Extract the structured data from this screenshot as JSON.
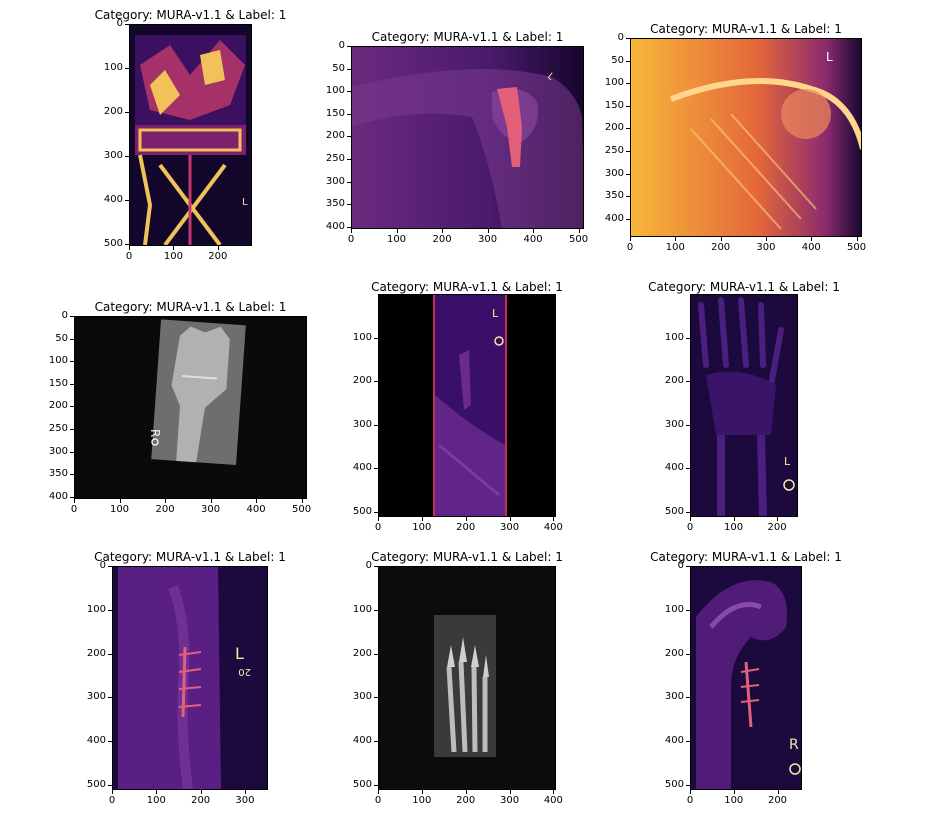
{
  "figure": {
    "panels": [
      {
        "title": "Category: MURA-v1.1 & Label: 1",
        "x_ticks": [
          "0",
          "100",
          "200"
        ],
        "y_ticks": [
          "0",
          "100",
          "200",
          "300",
          "400",
          "500"
        ],
        "x_range": [
          0,
          277
        ],
        "y_range": [
          0,
          505
        ],
        "colormap": "inferno",
        "content": "hardware-heavy limb film"
      },
      {
        "title": "Category: MURA-v1.1 & Label: 1",
        "x_ticks": [
          "0",
          "100",
          "200",
          "300",
          "400",
          "500"
        ],
        "y_ticks": [
          "0",
          "50",
          "100",
          "150",
          "200",
          "250",
          "300",
          "350",
          "400"
        ],
        "x_range": [
          0,
          512
        ],
        "y_range": [
          0,
          405
        ],
        "colormap": "inferno",
        "content": "shoulder with plate"
      },
      {
        "title": "Category: MURA-v1.1 & Label: 1",
        "x_ticks": [
          "0",
          "100",
          "200",
          "300",
          "400",
          "500"
        ],
        "y_ticks": [
          "0",
          "50",
          "100",
          "150",
          "200",
          "250",
          "300",
          "350",
          "400"
        ],
        "x_range": [
          0,
          512
        ],
        "y_range": [
          0,
          440
        ],
        "colormap": "inferno",
        "content": "bright shoulder film"
      },
      {
        "title": "Category: MURA-v1.1 & Label: 1",
        "x_ticks": [
          "0",
          "100",
          "200",
          "300",
          "400",
          "500"
        ],
        "y_ticks": [
          "0",
          "50",
          "100",
          "150",
          "200",
          "250",
          "300",
          "350",
          "400"
        ],
        "x_range": [
          0,
          512
        ],
        "y_range": [
          0,
          405
        ],
        "colormap": "gray",
        "content": "wrist film"
      },
      {
        "title": "Category: MURA-v1.1 & Label: 1",
        "x_ticks": [
          "0",
          "100",
          "200",
          "300",
          "400"
        ],
        "y_ticks": [
          "100",
          "200",
          "300",
          "400",
          "500"
        ],
        "x_range": [
          0,
          406
        ],
        "y_range": [
          0,
          512
        ],
        "colormap": "inferno",
        "content": "hand film"
      },
      {
        "title": "Category: MURA-v1.1 & Label: 1",
        "x_ticks": [
          "0",
          "100",
          "200"
        ],
        "y_ticks": [
          "100",
          "200",
          "300",
          "400",
          "500"
        ],
        "x_range": [
          0,
          248
        ],
        "y_range": [
          0,
          512
        ],
        "colormap": "inferno",
        "content": "hand and wrist film"
      },
      {
        "title": "Category: MURA-v1.1 & Label: 1",
        "x_ticks": [
          "0",
          "100",
          "200",
          "300"
        ],
        "y_ticks": [
          "0",
          "100",
          "200",
          "300",
          "400",
          "500"
        ],
        "x_range": [
          0,
          352
        ],
        "y_range": [
          0,
          512
        ],
        "colormap": "inferno",
        "content": "forearm with plate"
      },
      {
        "title": "Category: MURA-v1.1 & Label: 1",
        "x_ticks": [
          "0",
          "100",
          "200",
          "300",
          "400"
        ],
        "y_ticks": [
          "0",
          "100",
          "200",
          "300",
          "400",
          "500"
        ],
        "x_range": [
          0,
          406
        ],
        "y_range": [
          0,
          512
        ],
        "colormap": "gray",
        "content": "finger film"
      },
      {
        "title": "Category: MURA-v1.1 & Label: 1",
        "x_ticks": [
          "0",
          "100",
          "200"
        ],
        "y_ticks": [
          "0",
          "100",
          "200",
          "300",
          "400",
          "500"
        ],
        "x_range": [
          0,
          256
        ],
        "y_range": [
          0,
          512
        ],
        "colormap": "inferno",
        "content": "wrist with plate"
      }
    ],
    "colors": {
      "bg": "#ffffff",
      "axis": "#000000",
      "inferno_dark": "#12062a",
      "inferno_mid": "#6a1f86",
      "inferno_hot": "#f2a13a",
      "gray_dark": "#0a0a0a",
      "gray_light": "#c9c9c9"
    }
  }
}
